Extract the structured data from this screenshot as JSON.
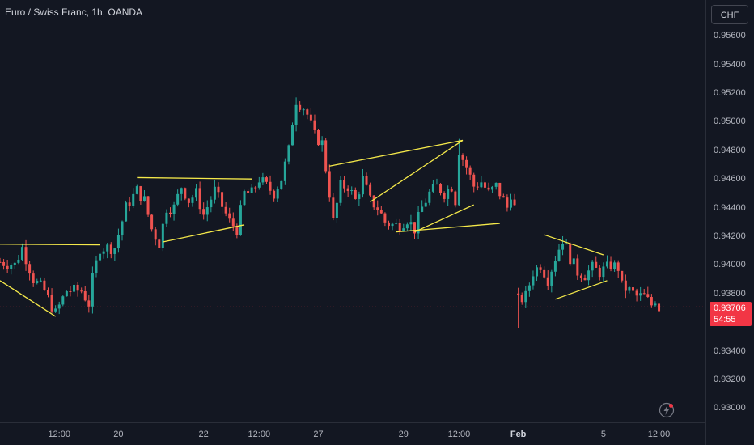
{
  "title": "Euro / Swiss Franc, 1h, OANDA",
  "currency": "CHF",
  "current_price": "0.93706",
  "countdown": "54:55",
  "icons": {
    "flash": "lightning-icon"
  },
  "colors": {
    "up": "#26a69a",
    "down": "#ef5350",
    "lines": "#f5e94a",
    "price_line": "#f23645"
  },
  "chart_data": {
    "type": "candlestick",
    "symbol": "EURCHF",
    "interval": "1h",
    "ylim": [
      0.929,
      0.9585
    ],
    "y_ticks": [
      "0.93000",
      "0.93200",
      "0.93400",
      "0.93800",
      "0.94000",
      "0.94200",
      "0.94400",
      "0.94600",
      "0.94800",
      "0.95000",
      "0.95200",
      "0.95400",
      "0.95600"
    ],
    "x_ticks": [
      {
        "label": "12:00",
        "bar": 16
      },
      {
        "label": "20",
        "bar": 32
      },
      {
        "label": "22",
        "bar": 55
      },
      {
        "label": "12:00",
        "bar": 70
      },
      {
        "label": "27",
        "bar": 86
      },
      {
        "label": "29",
        "bar": 109
      },
      {
        "label": "12:00",
        "bar": 124
      },
      {
        "label": "Feb",
        "bar": 140,
        "bold": true
      },
      {
        "label": "5",
        "bar": 163
      },
      {
        "label": "12:00",
        "bar": 178
      }
    ],
    "bars": 179,
    "keypoints": [
      [
        0,
        0.9402
      ],
      [
        4,
        0.94
      ],
      [
        6,
        0.9412
      ],
      [
        9,
        0.939
      ],
      [
        12,
        0.9382
      ],
      [
        15,
        0.9366
      ],
      [
        18,
        0.9382
      ],
      [
        22,
        0.9382
      ],
      [
        24,
        0.9373
      ],
      [
        25,
        0.939
      ],
      [
        27,
        0.9412
      ],
      [
        31,
        0.9412
      ],
      [
        34,
        0.944
      ],
      [
        37,
        0.9452
      ],
      [
        39,
        0.9445
      ],
      [
        41,
        0.9425
      ],
      [
        43,
        0.9415
      ],
      [
        45,
        0.944
      ],
      [
        47,
        0.944
      ],
      [
        49,
        0.9455
      ],
      [
        51,
        0.9445
      ],
      [
        53,
        0.945
      ],
      [
        55,
        0.9435
      ],
      [
        58,
        0.9452
      ],
      [
        62,
        0.943
      ],
      [
        64,
        0.9425
      ],
      [
        66,
        0.945
      ],
      [
        68,
        0.945
      ],
      [
        70,
        0.946
      ],
      [
        72,
        0.9455
      ],
      [
        74,
        0.945
      ],
      [
        76,
        0.946
      ],
      [
        78,
        0.948
      ],
      [
        79,
        0.95
      ],
      [
        80,
        0.9515
      ],
      [
        82,
        0.951
      ],
      [
        83,
        0.9505
      ],
      [
        85,
        0.949
      ],
      [
        87,
        0.9485
      ],
      [
        89,
        0.945
      ],
      [
        90,
        0.943
      ],
      [
        92,
        0.9455
      ],
      [
        94,
        0.9455
      ],
      [
        96,
        0.9445
      ],
      [
        98,
        0.946
      ],
      [
        100,
        0.9445
      ],
      [
        102,
        0.944
      ],
      [
        104,
        0.943
      ],
      [
        106,
        0.9428
      ],
      [
        108,
        0.9428
      ],
      [
        110,
        0.9432
      ],
      [
        112,
        0.9425
      ],
      [
        114,
        0.944
      ],
      [
        116,
        0.945
      ],
      [
        118,
        0.9455
      ],
      [
        120,
        0.945
      ],
      [
        122,
        0.9455
      ],
      [
        123,
        0.9445
      ],
      [
        124,
        0.948
      ],
      [
        126,
        0.9468
      ],
      [
        128,
        0.9455
      ],
      [
        130,
        0.9458
      ],
      [
        132,
        0.945
      ],
      [
        134,
        0.9455
      ],
      [
        136,
        0.9445
      ],
      [
        137,
        0.944
      ],
      [
        138,
        0.945
      ],
      [
        139,
        0.944
      ],
      [
        140,
        0.9375
      ],
      [
        142,
        0.9378
      ],
      [
        144,
        0.9395
      ],
      [
        146,
        0.94
      ],
      [
        148,
        0.939
      ],
      [
        150,
        0.9405
      ],
      [
        152,
        0.9418
      ],
      [
        154,
        0.9405
      ],
      [
        156,
        0.9395
      ],
      [
        158,
        0.9393
      ],
      [
        160,
        0.9398
      ],
      [
        162,
        0.9395
      ],
      [
        164,
        0.9398
      ],
      [
        165,
        0.94
      ],
      [
        167,
        0.9398
      ],
      [
        168,
        0.9385
      ],
      [
        170,
        0.9382
      ],
      [
        172,
        0.9378
      ],
      [
        174,
        0.9378
      ],
      [
        176,
        0.9372
      ],
      [
        177,
        0.9376
      ],
      [
        178,
        0.937
      ]
    ],
    "spikes": [
      {
        "bar": 25,
        "low": 0.9366
      },
      {
        "bar": 80,
        "high": 0.9517
      },
      {
        "bar": 124,
        "high": 0.9488
      },
      {
        "bar": 140,
        "low": 0.9356
      },
      {
        "bar": 152,
        "high": 0.942
      }
    ],
    "trendlines": [
      {
        "from": [
          0,
          0.94145
        ],
        "to": [
          27,
          0.9414
        ]
      },
      {
        "from": [
          0,
          0.9389
        ],
        "to": [
          15,
          0.9364
        ]
      },
      {
        "from": [
          37,
          0.9461
        ],
        "to": [
          68,
          0.946
        ]
      },
      {
        "from": [
          44,
          0.9416
        ],
        "to": [
          66,
          0.9428
        ]
      },
      {
        "from": [
          89,
          0.9469
        ],
        "to": [
          125,
          0.9487
        ]
      },
      {
        "from": [
          100,
          0.9444
        ],
        "to": [
          125,
          0.9487
        ]
      },
      {
        "from": [
          107,
          0.9423
        ],
        "to": [
          135,
          0.9429
        ]
      },
      {
        "from": [
          112,
          0.9423
        ],
        "to": [
          128,
          0.9442
        ]
      },
      {
        "from": [
          147,
          0.9421
        ],
        "to": [
          163,
          0.9407
        ]
      },
      {
        "from": [
          150,
          0.9376
        ],
        "to": [
          164,
          0.9389
        ]
      }
    ]
  }
}
